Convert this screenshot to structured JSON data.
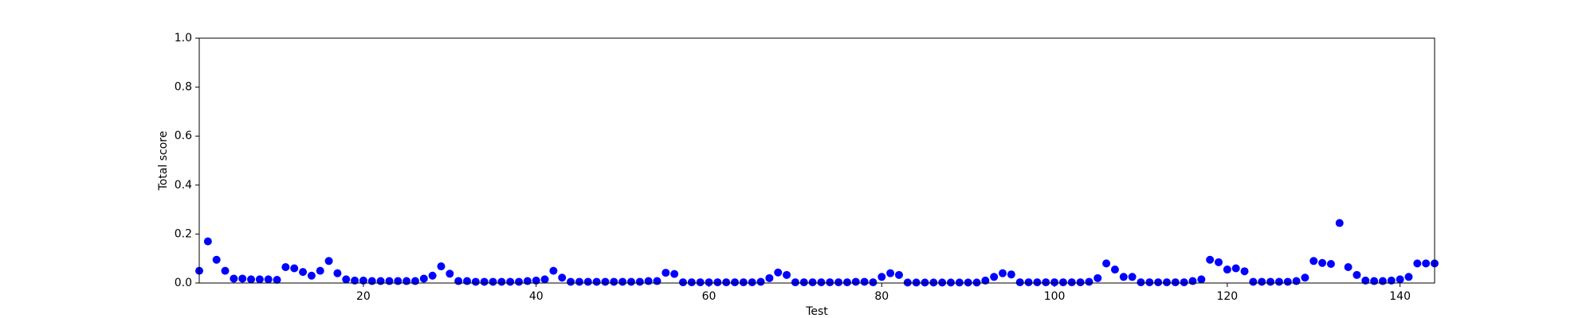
{
  "chart_data": {
    "type": "scatter",
    "xlabel": "Test",
    "ylabel": "Total score",
    "x": [
      1,
      2,
      3,
      4,
      5,
      6,
      7,
      8,
      9,
      10,
      11,
      12,
      13,
      14,
      15,
      16,
      17,
      18,
      19,
      20,
      21,
      22,
      23,
      24,
      25,
      26,
      27,
      28,
      29,
      30,
      31,
      32,
      33,
      34,
      35,
      36,
      37,
      38,
      39,
      40,
      41,
      42,
      43,
      44,
      45,
      46,
      47,
      48,
      49,
      50,
      51,
      52,
      53,
      54,
      55,
      56,
      57,
      58,
      59,
      60,
      61,
      62,
      63,
      64,
      65,
      66,
      67,
      68,
      69,
      70,
      71,
      72,
      73,
      74,
      75,
      76,
      77,
      78,
      79,
      80,
      81,
      82,
      83,
      84,
      85,
      86,
      87,
      88,
      89,
      90,
      91,
      92,
      93,
      94,
      95,
      96,
      97,
      98,
      99,
      100,
      101,
      102,
      103,
      104,
      105,
      106,
      107,
      108,
      109,
      110,
      111,
      112,
      113,
      114,
      115,
      116,
      117,
      118,
      119,
      120,
      121,
      122,
      123,
      124,
      125,
      126,
      127,
      128,
      129,
      130,
      131,
      132,
      133,
      134,
      135,
      136,
      137,
      138,
      139,
      140,
      141,
      142,
      143,
      144
    ],
    "values": [
      0.05,
      0.17,
      0.095,
      0.05,
      0.018,
      0.018,
      0.015,
      0.015,
      0.015,
      0.013,
      0.065,
      0.06,
      0.045,
      0.03,
      0.05,
      0.09,
      0.04,
      0.015,
      0.01,
      0.01,
      0.008,
      0.008,
      0.008,
      0.008,
      0.008,
      0.008,
      0.018,
      0.03,
      0.068,
      0.038,
      0.008,
      0.008,
      0.005,
      0.005,
      0.005,
      0.005,
      0.005,
      0.005,
      0.008,
      0.01,
      0.015,
      0.05,
      0.022,
      0.005,
      0.005,
      0.005,
      0.005,
      0.005,
      0.005,
      0.005,
      0.005,
      0.005,
      0.008,
      0.008,
      0.042,
      0.037,
      0.003,
      0.003,
      0.003,
      0.003,
      0.003,
      0.003,
      0.003,
      0.003,
      0.003,
      0.005,
      0.02,
      0.043,
      0.033,
      0.003,
      0.003,
      0.003,
      0.003,
      0.003,
      0.003,
      0.003,
      0.005,
      0.005,
      0.003,
      0.025,
      0.04,
      0.033,
      0.002,
      0.002,
      0.002,
      0.002,
      0.002,
      0.002,
      0.002,
      0.002,
      0.002,
      0.01,
      0.025,
      0.04,
      0.035,
      0.003,
      0.003,
      0.003,
      0.003,
      0.003,
      0.003,
      0.003,
      0.003,
      0.005,
      0.02,
      0.08,
      0.055,
      0.025,
      0.025,
      0.003,
      0.003,
      0.003,
      0.003,
      0.003,
      0.003,
      0.008,
      0.015,
      0.095,
      0.085,
      0.055,
      0.06,
      0.048,
      0.005,
      0.005,
      0.005,
      0.005,
      0.005,
      0.008,
      0.022,
      0.09,
      0.082,
      0.078,
      0.245,
      0.065,
      0.033,
      0.01,
      0.008,
      0.008,
      0.01,
      0.015,
      0.025,
      0.08,
      0.08,
      0.08
    ],
    "color": "#0000ff",
    "xlim": [
      1,
      144
    ],
    "xticks": [
      20,
      40,
      60,
      80,
      100,
      120,
      140
    ],
    "ylim": [
      0,
      1
    ],
    "yticks": [
      {
        "value": 0,
        "label": "0.0"
      },
      {
        "value": 0.2,
        "label": "0.2"
      },
      {
        "value": 0.4,
        "label": "0.4"
      },
      {
        "value": 0.6,
        "label": "0.6"
      },
      {
        "value": 0.8,
        "label": "0.8"
      },
      {
        "value": 1,
        "label": "1.0"
      }
    ],
    "grid": false
  }
}
